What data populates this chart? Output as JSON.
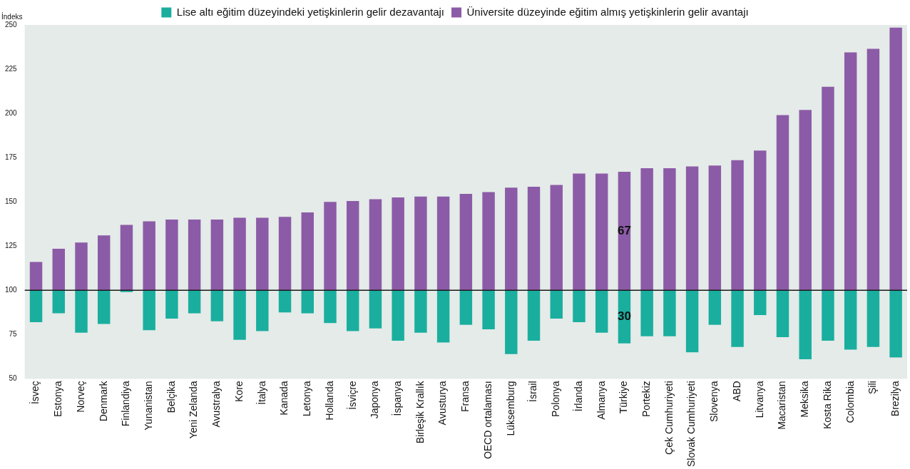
{
  "chart_data": {
    "type": "bar",
    "ylabel": "İndeks",
    "legend": "top",
    "categories": [
      "İsveç",
      "Estonya",
      "Norveç",
      "Denmark",
      "Finlandiya",
      "Yunanistan",
      "Belçika",
      "Yeni Zelanda",
      "Avustralya",
      "Kore",
      "İtalya",
      "Kanada",
      "Letonya",
      "Hollanda",
      "İsviçre",
      "Japonya",
      "İspanya",
      "Birleşik Krallık",
      "Avusturya",
      "Fransa",
      "OECD ortalaması",
      "Lüksemburg",
      "İsrail",
      "Polonya",
      "İrlanda",
      "Almanya",
      "Türkiye",
      "Portekiz",
      "Çek Cumhuriyeti",
      "Slovak Cumhuriyeti",
      "Slovenya",
      "ABD",
      "Litvanya",
      "Macaristan",
      "Meksika",
      "Kosta Rika",
      "Colombia",
      "Şili",
      "Brezilya"
    ],
    "series": [
      {
        "name": "Lise altı eğitim düzeyindeki yetişkinlerin gelir dezavantajı",
        "color": "#1aae9f",
        "base": [
          100,
          100,
          100,
          100,
          100,
          100,
          100,
          100,
          100,
          100,
          100,
          100,
          100,
          100,
          100,
          100,
          100,
          100,
          100,
          100,
          100,
          100,
          100,
          100,
          100,
          100,
          100,
          100,
          100,
          100,
          100,
          100,
          100,
          100,
          100,
          100,
          100,
          100,
          100
        ],
        "value_labels": [
          null,
          null,
          null,
          null,
          null,
          null,
          null,
          null,
          null,
          null,
          null,
          null,
          null,
          null,
          null,
          null,
          null,
          null,
          null,
          null,
          null,
          null,
          null,
          null,
          null,
          null,
          "30",
          null,
          null,
          null,
          null,
          null,
          null,
          null,
          null,
          null,
          null,
          null,
          null
        ],
        "values": [
          -18,
          -13,
          -24,
          -19,
          -1,
          -22.5,
          -16,
          -13,
          -17.5,
          -28,
          -23,
          -12.5,
          -13,
          -18.5,
          -23,
          -21.5,
          -28.5,
          -24,
          -29.5,
          -19.5,
          -22,
          -36,
          -28.5,
          -16,
          -18,
          -24,
          -30,
          -26,
          -26,
          -35,
          -19.5,
          -32,
          -14,
          -26.5,
          -39,
          -28.5,
          -33.5,
          -32,
          -38
        ]
      },
      {
        "name": "Üniversite düzeyinde eğitim almış yetişkinlerin gelir avantajı",
        "color": "#8c5ba7",
        "base": [
          100,
          100,
          100,
          100,
          100,
          100,
          100,
          100,
          100,
          100,
          100,
          100,
          100,
          100,
          100,
          100,
          100,
          100,
          100,
          100,
          100,
          100,
          100,
          100,
          100,
          100,
          100,
          100,
          100,
          100,
          100,
          100,
          100,
          100,
          100,
          100,
          100,
          100,
          100
        ],
        "value_labels": [
          null,
          null,
          null,
          null,
          null,
          null,
          null,
          null,
          null,
          null,
          null,
          null,
          null,
          null,
          null,
          null,
          null,
          null,
          null,
          null,
          null,
          null,
          null,
          null,
          null,
          null,
          "67",
          null,
          null,
          null,
          null,
          null,
          null,
          null,
          null,
          null,
          null,
          null,
          null
        ],
        "values": [
          16,
          23.5,
          27,
          31,
          37,
          39,
          40,
          40,
          40,
          41,
          41,
          41.5,
          44,
          50,
          50.5,
          51.5,
          52.5,
          53,
          53,
          54.5,
          55.5,
          58,
          58.5,
          59.5,
          66,
          66,
          67,
          69,
          69,
          70,
          70.5,
          73.5,
          79,
          99,
          102,
          115,
          134.5,
          136.5,
          148.5
        ]
      }
    ],
    "ylim": [
      50,
      250
    ],
    "yticks": [
      50,
      75,
      100,
      125,
      150,
      175,
      200,
      225,
      250
    ],
    "grid": false,
    "ref_lines": [
      {
        "axis": "y",
        "value": 100,
        "color": "#1a1a1a"
      }
    ]
  }
}
